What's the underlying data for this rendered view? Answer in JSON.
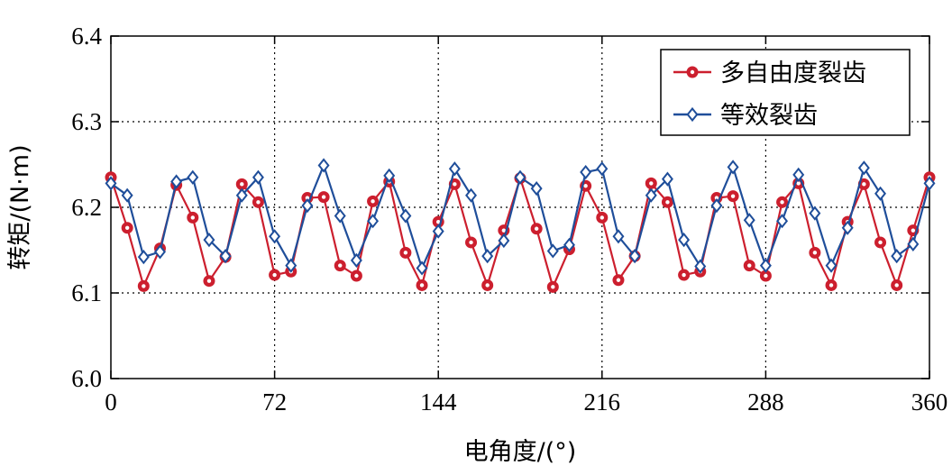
{
  "chart_data": {
    "type": "line",
    "xlabel": "电角度/(°)",
    "ylabel": "转矩/(N·m)",
    "xlim": [
      0,
      360
    ],
    "ylim": [
      6.0,
      6.4
    ],
    "xticks": [
      0,
      72,
      144,
      216,
      288,
      360
    ],
    "yticks": [
      6.0,
      6.1,
      6.2,
      6.3,
      6.4
    ],
    "xtick_labels": [
      "0",
      "72",
      "144",
      "216",
      "288",
      "360"
    ],
    "ytick_labels": [
      "6.0",
      "6.1",
      "6.2",
      "6.3",
      "6.4"
    ],
    "grid": true,
    "legend_position": "top-right",
    "series": [
      {
        "name": "多自由度裂齿",
        "color": "#cc1f2e",
        "marker": "circle",
        "x": [
          0,
          7.2,
          14.4,
          21.6,
          28.8,
          36,
          43.2,
          50.4,
          57.6,
          64.8,
          72,
          79.2,
          86.4,
          93.6,
          100.8,
          108,
          115.2,
          122.4,
          129.6,
          136.8,
          144,
          151.2,
          158.4,
          165.6,
          172.8,
          180,
          187.2,
          194.4,
          201.6,
          208.8,
          216,
          223.2,
          230.4,
          237.6,
          244.8,
          252,
          259.2,
          266.4,
          273.6,
          280.8,
          288,
          295.2,
          302.4,
          309.6,
          316.8,
          324,
          331.2,
          338.4,
          345.6,
          352.8,
          360
        ],
        "y": [
          6.235,
          6.176,
          6.108,
          6.152,
          6.226,
          6.188,
          6.114,
          6.142,
          6.227,
          6.206,
          6.121,
          6.125,
          6.211,
          6.212,
          6.132,
          6.12,
          6.207,
          6.23,
          6.147,
          6.109,
          6.183,
          6.227,
          6.159,
          6.109,
          6.173,
          6.234,
          6.175,
          6.107,
          6.151,
          6.225,
          6.188,
          6.115,
          6.143,
          6.228,
          6.206,
          6.121,
          6.125,
          6.211,
          6.213,
          6.132,
          6.12,
          6.206,
          6.228,
          6.147,
          6.109,
          6.183,
          6.227,
          6.159,
          6.109,
          6.173,
          6.235
        ]
      },
      {
        "name": "等效裂齿",
        "color": "#1f4e9a",
        "marker": "diamond",
        "x": [
          0,
          7.2,
          14.4,
          21.6,
          28.8,
          36,
          43.2,
          50.4,
          57.6,
          64.8,
          72,
          79.2,
          86.4,
          93.6,
          100.8,
          108,
          115.2,
          122.4,
          129.6,
          136.8,
          144,
          151.2,
          158.4,
          165.6,
          172.8,
          180,
          187.2,
          194.4,
          201.6,
          208.8,
          216,
          223.2,
          230.4,
          237.6,
          244.8,
          252,
          259.2,
          266.4,
          273.6,
          280.8,
          288,
          295.2,
          302.4,
          309.6,
          316.8,
          324,
          331.2,
          338.4,
          345.6,
          352.8,
          360
        ],
        "y": [
          6.228,
          6.214,
          6.142,
          6.148,
          6.23,
          6.235,
          6.162,
          6.143,
          6.214,
          6.235,
          6.166,
          6.132,
          6.202,
          6.249,
          6.19,
          6.138,
          6.184,
          6.237,
          6.19,
          6.129,
          6.172,
          6.245,
          6.214,
          6.143,
          6.161,
          6.235,
          6.222,
          6.149,
          6.156,
          6.241,
          6.245,
          6.166,
          6.143,
          6.214,
          6.233,
          6.162,
          6.131,
          6.202,
          6.247,
          6.185,
          6.132,
          6.184,
          6.238,
          6.193,
          6.132,
          6.176,
          6.246,
          6.216,
          6.143,
          6.157,
          6.228
        ]
      }
    ]
  }
}
